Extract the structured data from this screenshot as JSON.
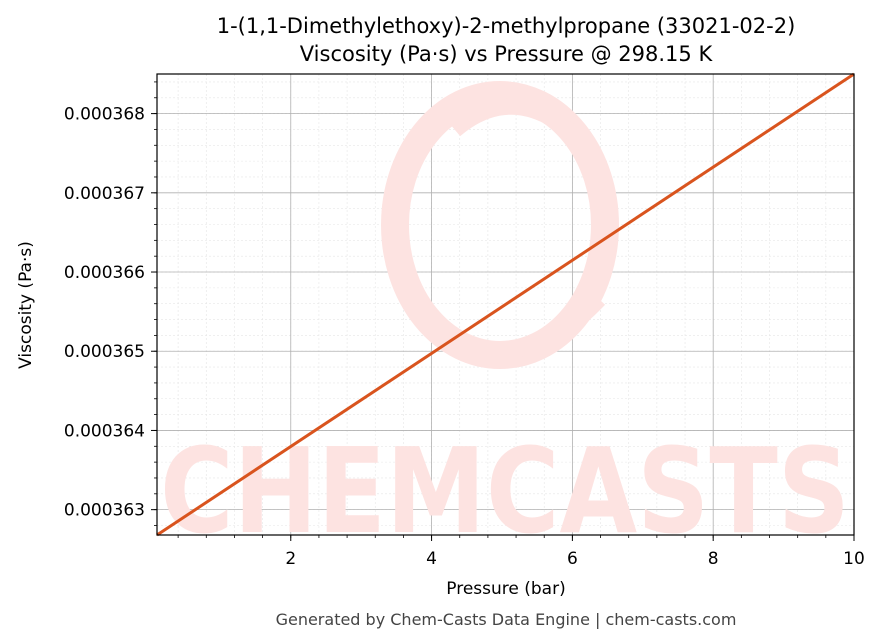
{
  "chart_data": {
    "type": "line",
    "title": "1-(1,1-Dimethylethoxy)-2-methylpropane (33021-02-2)",
    "subtitle": "Viscosity (Pa·s) vs Pressure @ 298.15 K",
    "xlabel": "Pressure (bar)",
    "ylabel": "Viscosity (Pa·s)",
    "xlim": [
      0.1,
      10
    ],
    "ylim": [
      0.00036268,
      0.0003685
    ],
    "x_ticks": [
      2,
      4,
      6,
      8,
      10
    ],
    "x_tick_labels": [
      "2",
      "4",
      "6",
      "8",
      "10"
    ],
    "y_ticks": [
      0.000363,
      0.000364,
      0.000365,
      0.000366,
      0.000367,
      0.000368
    ],
    "y_tick_labels": [
      "0.000363",
      "0.000364",
      "0.000365",
      "0.000366",
      "0.000367",
      "0.000368"
    ],
    "grid": true,
    "series": [
      {
        "color": "#d9541e",
        "x": [
          0.1,
          10
        ],
        "y": [
          0.00036268,
          0.0003685
        ]
      }
    ]
  },
  "watermark": {
    "text": "CHEMCASTS",
    "color": "#fde3e1"
  },
  "footer": {
    "text": "Generated by Chem-Casts Data Engine | chem-casts.com"
  }
}
